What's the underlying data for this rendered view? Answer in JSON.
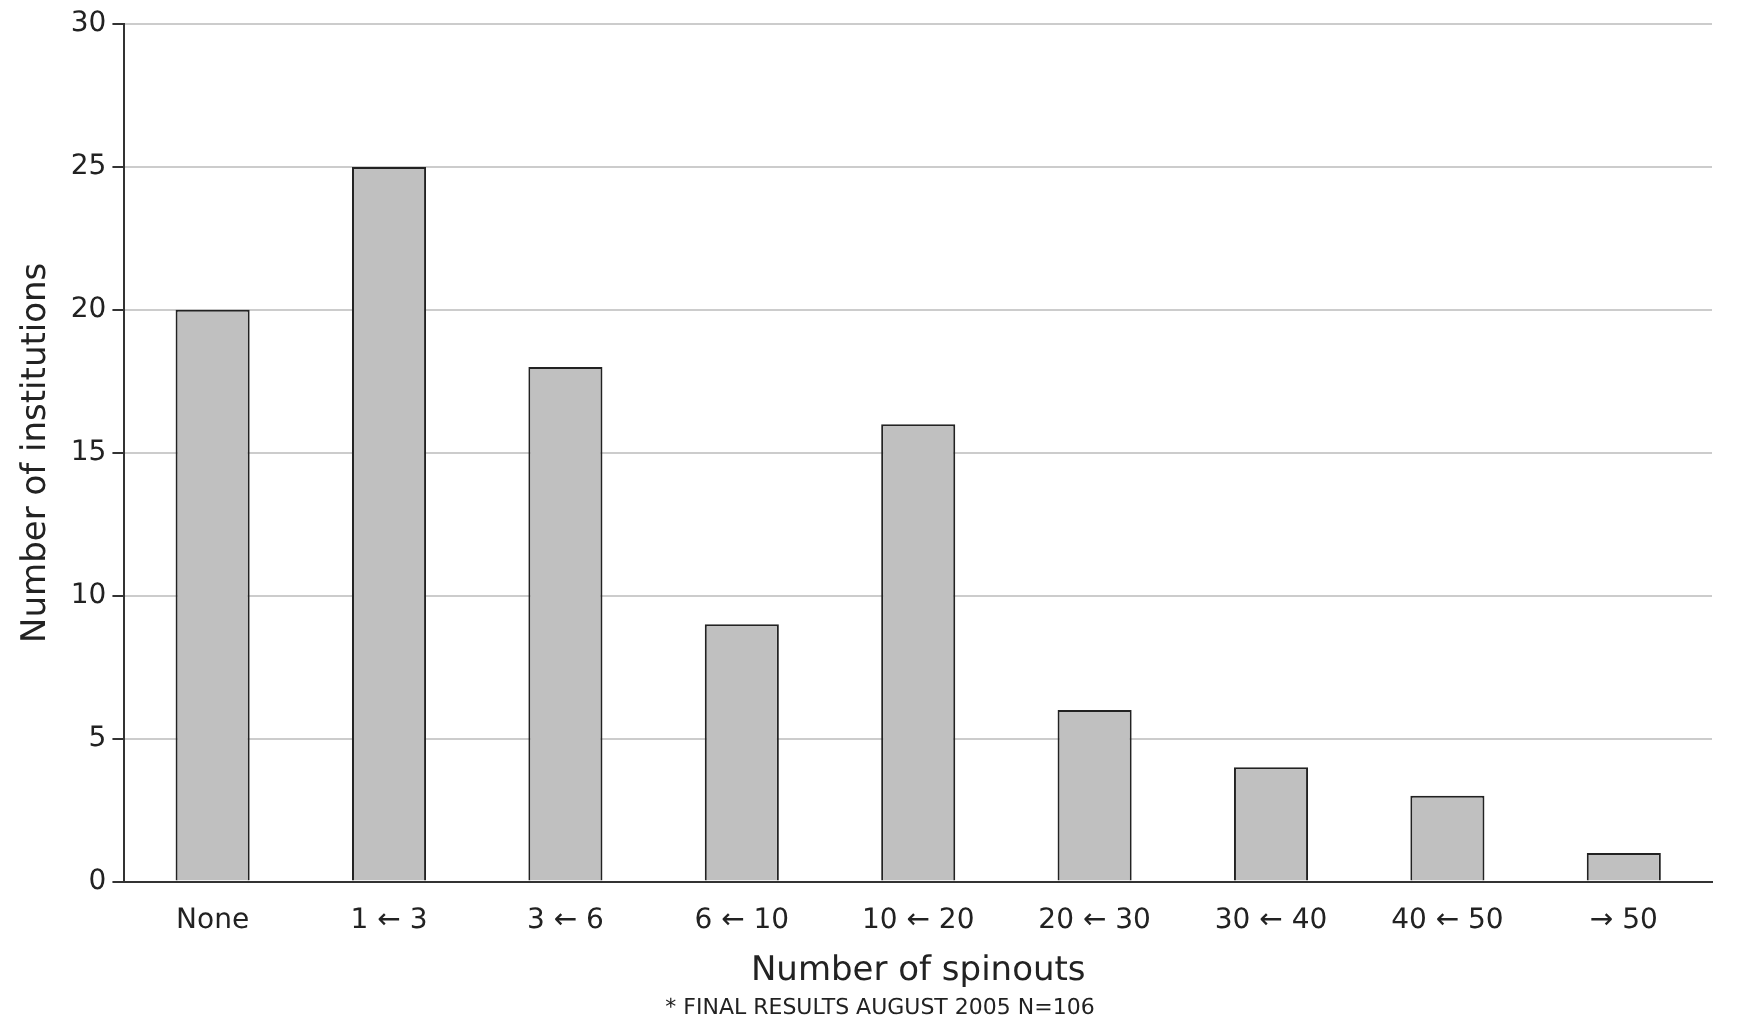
{
  "chart_data": {
    "type": "bar",
    "xlabel": "Number of spinouts",
    "ylabel": "Number of institutions",
    "annotations": [
      "* FINAL RESULTS AUGUST 2005 N=106"
    ],
    "categories": [
      "None",
      "1 ← 3",
      "3 ← 6",
      "6 ← 10",
      "10 ← 20",
      "20 ← 30",
      "30 ← 40",
      "40 ← 50",
      "→ 50"
    ],
    "values": [
      20,
      25,
      18,
      9,
      16,
      6,
      4,
      3,
      1
    ],
    "color": "#c0c0c0",
    "ylim": [
      0,
      30
    ],
    "yticks": [
      0,
      5,
      10,
      15,
      20,
      25,
      30
    ],
    "grid": "y",
    "legend": false
  }
}
